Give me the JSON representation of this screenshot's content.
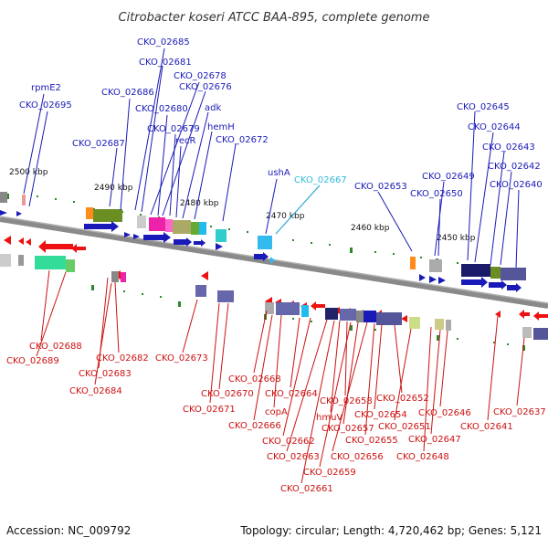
{
  "title": "Citrobacter koseri ATCC BAA-895, complete genome",
  "accession": "Accession: NC_009792",
  "topology": "Topology: circular; Length: 4,720,462 bp; Genes: 5,121",
  "colors": {
    "forward": "#1a1ab8",
    "reverse": "#ee1111",
    "highlight": "#33bbdd",
    "backbone": "#8a8a8a"
  },
  "ticks": [
    "2500 kbp",
    "2490 kbp",
    "2480 kbp",
    "2470 kbp",
    "2460 kbp",
    "2450 kbp"
  ],
  "top_labels": [
    {
      "text": "rpmE2"
    },
    {
      "text": "CKO_02695"
    },
    {
      "text": "CKO_02685"
    },
    {
      "text": "CKO_02681"
    },
    {
      "text": "CKO_02678"
    },
    {
      "text": "CKO_02686"
    },
    {
      "text": "CKO_02676"
    },
    {
      "text": "CKO_02680"
    },
    {
      "text": "adk"
    },
    {
      "text": "CKO_02679"
    },
    {
      "text": "hemH"
    },
    {
      "text": "recR"
    },
    {
      "text": "CKO_02687"
    },
    {
      "text": "CKO_02672"
    },
    {
      "text": "ushA"
    },
    {
      "text": "CKO_02667"
    },
    {
      "text": "CKO_02653"
    },
    {
      "text": "CKO_02649"
    },
    {
      "text": "CKO_02650"
    },
    {
      "text": "CKO_02645"
    },
    {
      "text": "CKO_02644"
    },
    {
      "text": "CKO_02643"
    },
    {
      "text": "CKO_02642"
    },
    {
      "text": "CKO_02640"
    }
  ],
  "bottom_labels": [
    {
      "text": "CKO_02688"
    },
    {
      "text": "CKO_02689"
    },
    {
      "text": "CKO_02682"
    },
    {
      "text": "CKO_02683"
    },
    {
      "text": "CKO_02684"
    },
    {
      "text": "CKO_02673"
    },
    {
      "text": "CKO_02668"
    },
    {
      "text": "CKO_02670"
    },
    {
      "text": "CKO_02671"
    },
    {
      "text": "CKO_02664"
    },
    {
      "text": "copA"
    },
    {
      "text": "CKO_02666"
    },
    {
      "text": "CKO_02658"
    },
    {
      "text": "hmuV"
    },
    {
      "text": "CKO_02662"
    },
    {
      "text": "CKO_02657"
    },
    {
      "text": "CKO_02663"
    },
    {
      "text": "CKO_02656"
    },
    {
      "text": "CKO_02659"
    },
    {
      "text": "CKO_02661"
    },
    {
      "text": "CKO_02652"
    },
    {
      "text": "CKO_02654"
    },
    {
      "text": "CKO_02651"
    },
    {
      "text": "CKO_02655"
    },
    {
      "text": "CKO_02646"
    },
    {
      "text": "CKO_02647"
    },
    {
      "text": "CKO_02648"
    },
    {
      "text": "CKO_02641"
    },
    {
      "text": "CKO_02637"
    }
  ]
}
